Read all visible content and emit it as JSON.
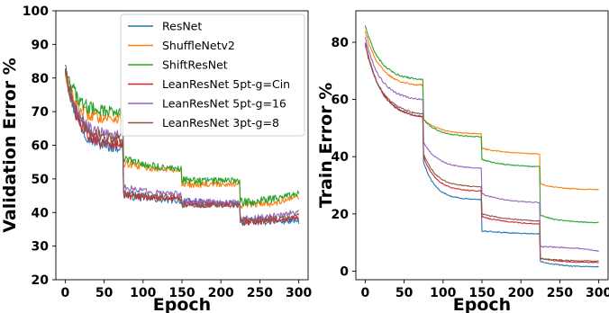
{
  "chart_data": [
    {
      "type": "line",
      "xlabel": "Epoch",
      "ylabel": "Validation Error %",
      "xlim": [
        -12,
        312
      ],
      "ylim": [
        20,
        100
      ],
      "xticks": [
        0,
        50,
        100,
        150,
        200,
        250,
        300
      ],
      "yticks": [
        20,
        30,
        40,
        50,
        60,
        70,
        80,
        90,
        100
      ],
      "grid": false,
      "legend_position": "top-right",
      "series": [
        {
          "name": "ResNet",
          "color": "#1f77b4",
          "noise": 2.6,
          "segments": [
            [
              0,
              84,
              74,
              59.5,
              1.6
            ],
            [
              75,
              45.5,
              149,
              43.5,
              0.5
            ],
            [
              150,
              43,
              224,
              42.5,
              0.4
            ],
            [
              225,
              37.5,
              300,
              37.5,
              0.3
            ]
          ]
        },
        {
          "name": "ShuffleNetv2",
          "color": "#ff7f0e",
          "noise": 2.2,
          "segments": [
            [
              0,
              82,
              74,
              68,
              2.0
            ],
            [
              75,
              54.5,
              149,
              52.5,
              0.5
            ],
            [
              150,
              48.5,
              224,
              48.5,
              0.3
            ],
            [
              225,
              42,
              300,
              44.5,
              -0.5
            ]
          ]
        },
        {
          "name": "ShiftResNet",
          "color": "#2ca02c",
          "noise": 2.4,
          "segments": [
            [
              0,
              85,
              74,
              70,
              2.0
            ],
            [
              75,
              56,
              149,
              53,
              0.6
            ],
            [
              150,
              49.5,
              224,
              49.5,
              0.3
            ],
            [
              225,
              43,
              300,
              46,
              -0.6
            ]
          ]
        },
        {
          "name": "LeanResNet 5pt-g=Cin",
          "color": "#d62728",
          "noise": 2.0,
          "segments": [
            [
              0,
              83,
              74,
              60,
              1.6
            ],
            [
              75,
              45,
              149,
              44,
              0.5
            ],
            [
              150,
              42.5,
              224,
              42.5,
              0.3
            ],
            [
              225,
              37,
              300,
              38.5,
              -0.3
            ]
          ]
        },
        {
          "name": "LeanResNet 5pt-g=16",
          "color": "#9467bd",
          "noise": 2.0,
          "segments": [
            [
              0,
              82,
              74,
              63,
              1.6
            ],
            [
              75,
              48,
              149,
              45.5,
              0.8
            ],
            [
              150,
              43.5,
              224,
              43,
              0.4
            ],
            [
              225,
              38,
              300,
              40.5,
              -0.5
            ]
          ]
        },
        {
          "name": "LeanResNet 3pt-g=8",
          "color": "#8c564b",
          "noise": 2.0,
          "segments": [
            [
              0,
              82,
              74,
              62,
              1.6
            ],
            [
              75,
              46,
              149,
              44.5,
              0.5
            ],
            [
              150,
              42.5,
              224,
              42,
              0.3
            ],
            [
              225,
              37.5,
              300,
              39,
              -0.3
            ]
          ]
        }
      ]
    },
    {
      "type": "line",
      "xlabel": "Epoch",
      "ylabel": "Train Error %",
      "xlim": [
        -12,
        312
      ],
      "ylim": [
        -3,
        91
      ],
      "xticks": [
        0,
        50,
        100,
        150,
        200,
        250,
        300
      ],
      "yticks": [
        0,
        20,
        40,
        60,
        80
      ],
      "grid": false,
      "series": [
        {
          "name": "ResNet",
          "color": "#1f77b4",
          "noise": 0.4,
          "segments": [
            [
              0,
              80,
              74,
              54,
              1.2
            ],
            [
              75,
              38,
              149,
              25,
              1.6
            ],
            [
              150,
              14,
              224,
              13,
              0.3
            ],
            [
              225,
              3.5,
              300,
              1.5,
              1.0
            ]
          ]
        },
        {
          "name": "ShuffleNetv2",
          "color": "#ff7f0e",
          "noise": 0.4,
          "segments": [
            [
              0,
              84,
              74,
              65,
              1.3
            ],
            [
              75,
              53,
              149,
              48,
              1.2
            ],
            [
              150,
              43,
              224,
              41,
              0.8
            ],
            [
              225,
              30.5,
              300,
              28.5,
              1.0
            ]
          ]
        },
        {
          "name": "ShiftResNet",
          "color": "#2ca02c",
          "noise": 0.4,
          "segments": [
            [
              0,
              86,
              74,
              67,
              1.3
            ],
            [
              75,
              53,
              149,
              47,
              1.3
            ],
            [
              150,
              39,
              224,
              36.5,
              0.8
            ],
            [
              225,
              19.5,
              300,
              17,
              1.0
            ]
          ]
        },
        {
          "name": "LeanResNet 5pt-g=Cin",
          "color": "#d62728",
          "noise": 0.4,
          "segments": [
            [
              0,
              80,
              74,
              54,
              1.2
            ],
            [
              75,
              40,
              149,
              28,
              1.5
            ],
            [
              150,
              19,
              224,
              16.5,
              0.6
            ],
            [
              225,
              4.5,
              300,
              3,
              1.0
            ]
          ]
        },
        {
          "name": "LeanResNet 5pt-g=16",
          "color": "#9467bd",
          "noise": 0.4,
          "segments": [
            [
              0,
              82,
              74,
              60,
              1.3
            ],
            [
              75,
              45,
              149,
              36,
              1.3
            ],
            [
              150,
              27,
              224,
              24,
              0.8
            ],
            [
              225,
              8.5,
              300,
              7,
              -0.8
            ]
          ]
        },
        {
          "name": "LeanResNet 3pt-g=8",
          "color": "#8c564b",
          "noise": 0.4,
          "segments": [
            [
              0,
              79,
              74,
              55,
              1.2
            ],
            [
              75,
              41,
              149,
              29.5,
              1.5
            ],
            [
              150,
              20,
              224,
              17.5,
              0.6
            ],
            [
              225,
              4.5,
              300,
              3.5,
              1.0
            ]
          ]
        }
      ]
    }
  ]
}
